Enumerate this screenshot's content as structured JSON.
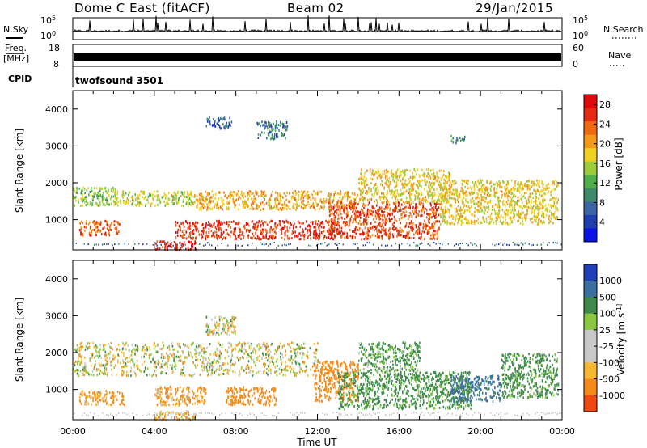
{
  "header": {
    "station": "Dome C East (fitACF)",
    "beam": "Beam 02",
    "date": "29/Jan/2015"
  },
  "top_panels": {
    "nsky_label": "N.Sky",
    "nsky_ticks": [
      "10^5",
      "10^0"
    ],
    "nsearch_label": "N.Search",
    "nsearch_ticks": [
      "10^5",
      "10^0"
    ],
    "freq_label_1": "Freq.",
    "freq_label_2": "[MHz]",
    "freq_ticks": [
      "18",
      "8"
    ],
    "nave_label": "Nave",
    "nave_ticks": [
      "60",
      "0"
    ],
    "cpid_label": "CPID",
    "cpid_value": "twofsound 3501"
  },
  "colors": {
    "power_scale": [
      "#0a14e6",
      "#1f3fb0",
      "#3a66a8",
      "#3e8a6a",
      "#4fb04a",
      "#9ccc3a",
      "#f0d020",
      "#f59a18",
      "#ef6a10",
      "#e42a10",
      "#e00a0a"
    ],
    "velocity_scale": [
      "#e00a0a",
      "#ef4810",
      "#f58a18",
      "#f5b830",
      "#c8c8c8",
      "#c8c8c8",
      "#8ac840",
      "#3e8a4a",
      "#3a70a0",
      "#2040b8"
    ]
  },
  "chart_data": [
    {
      "type": "heatmap",
      "title": "",
      "xlabel": "",
      "ylabel": "Slant Range [km]",
      "xlim": [
        "00:00",
        "24:00"
      ],
      "ylim": [
        180,
        4500
      ],
      "x_ticks": [
        "00:00",
        "04:00",
        "08:00",
        "12:00",
        "16:00",
        "20:00",
        "00:00"
      ],
      "y_ticks": [
        "1000",
        "2000",
        "3000",
        "4000"
      ],
      "colorbar_label": "Power [dB]",
      "colorbar_ticks": [
        "4",
        "8",
        "12",
        "16",
        "20",
        "24",
        "28"
      ],
      "colorbar_range": [
        0,
        30
      ],
      "echo_regions": [
        {
          "t0": 0.0,
          "t1": 2.2,
          "r0": 1400,
          "r1": 1900,
          "value": 14
        },
        {
          "t0": 0.3,
          "t1": 2.3,
          "r0": 600,
          "r1": 1000,
          "value": 24
        },
        {
          "t0": 2.0,
          "t1": 6.0,
          "r0": 1400,
          "r1": 1800,
          "value": 16
        },
        {
          "t0": 5.0,
          "t1": 13.0,
          "r0": 500,
          "r1": 1000,
          "value": 26
        },
        {
          "t0": 4.0,
          "t1": 6.0,
          "r0": 200,
          "r1": 450,
          "value": 28
        },
        {
          "t0": 6.0,
          "t1": 14.0,
          "r0": 1300,
          "r1": 1800,
          "value": 20
        },
        {
          "t0": 12.5,
          "t1": 18.0,
          "r0": 500,
          "r1": 1500,
          "value": 25
        },
        {
          "t0": 14.0,
          "t1": 18.5,
          "r0": 1500,
          "r1": 2400,
          "value": 18
        },
        {
          "t0": 18.0,
          "t1": 23.8,
          "r0": 900,
          "r1": 2100,
          "value": 18
        },
        {
          "t0": 6.5,
          "t1": 7.8,
          "r0": 3500,
          "r1": 3800,
          "value": 6
        },
        {
          "t0": 9.0,
          "t1": 10.5,
          "r0": 3200,
          "r1": 3700,
          "value": 8
        },
        {
          "t0": 18.5,
          "t1": 19.2,
          "r0": 3100,
          "r1": 3300,
          "value": 10
        }
      ]
    },
    {
      "type": "heatmap",
      "title": "",
      "xlabel": "Time UT",
      "ylabel": "Slant Range [km]",
      "xlim": [
        "00:00",
        "24:00"
      ],
      "ylim": [
        180,
        4500
      ],
      "x_ticks": [
        "00:00",
        "04:00",
        "08:00",
        "12:00",
        "16:00",
        "20:00",
        "00:00"
      ],
      "y_ticks": [
        "1000",
        "2000",
        "3000",
        "4000"
      ],
      "colorbar_label": "Velocity [m s^-1]",
      "colorbar_ticks": [
        "1000",
        "500",
        "100",
        "25",
        "-25",
        "-100",
        "-500",
        "-1000"
      ],
      "colorbar_range": [
        -1000,
        1000
      ],
      "echo_regions": [
        {
          "t0": 0.0,
          "t1": 12.0,
          "r0": 1400,
          "r1": 2300,
          "value": 0
        },
        {
          "t0": 0.3,
          "t1": 2.5,
          "r0": 600,
          "r1": 1000,
          "value": -150
        },
        {
          "t0": 4.0,
          "t1": 6.5,
          "r0": 600,
          "r1": 1100,
          "value": -150
        },
        {
          "t0": 7.5,
          "t1": 10.0,
          "r0": 600,
          "r1": 1100,
          "value": -300
        },
        {
          "t0": 4.0,
          "t1": 6.0,
          "r0": 200,
          "r1": 450,
          "value": -100
        },
        {
          "t0": 11.8,
          "t1": 14.0,
          "r0": 700,
          "r1": 1800,
          "value": -300
        },
        {
          "t0": 13.0,
          "t1": 19.5,
          "r0": 500,
          "r1": 1500,
          "value": 200
        },
        {
          "t0": 14.0,
          "t1": 17.0,
          "r0": 1500,
          "r1": 2300,
          "value": 150
        },
        {
          "t0": 18.5,
          "t1": 21.0,
          "r0": 700,
          "r1": 1400,
          "value": 600
        },
        {
          "t0": 21.0,
          "t1": 23.8,
          "r0": 800,
          "r1": 2000,
          "value": 200
        },
        {
          "t0": 6.5,
          "t1": 8.0,
          "r0": 2500,
          "r1": 3000,
          "value": 0
        }
      ]
    }
  ]
}
